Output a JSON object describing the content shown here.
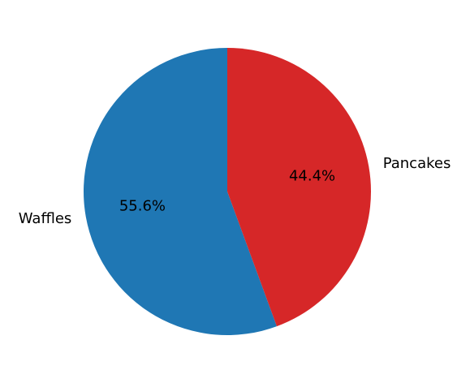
{
  "chart_data": {
    "type": "pie",
    "title": "",
    "slices": [
      {
        "label": "Waffles",
        "value": 55.6,
        "pct_label": "55.6%",
        "color": "#1f77b4"
      },
      {
        "label": "Pancakes",
        "value": 44.4,
        "pct_label": "44.4%",
        "color": "#d62728"
      }
    ],
    "start_angle_deg": 90,
    "direction": "counterclockwise",
    "legend": "none"
  }
}
